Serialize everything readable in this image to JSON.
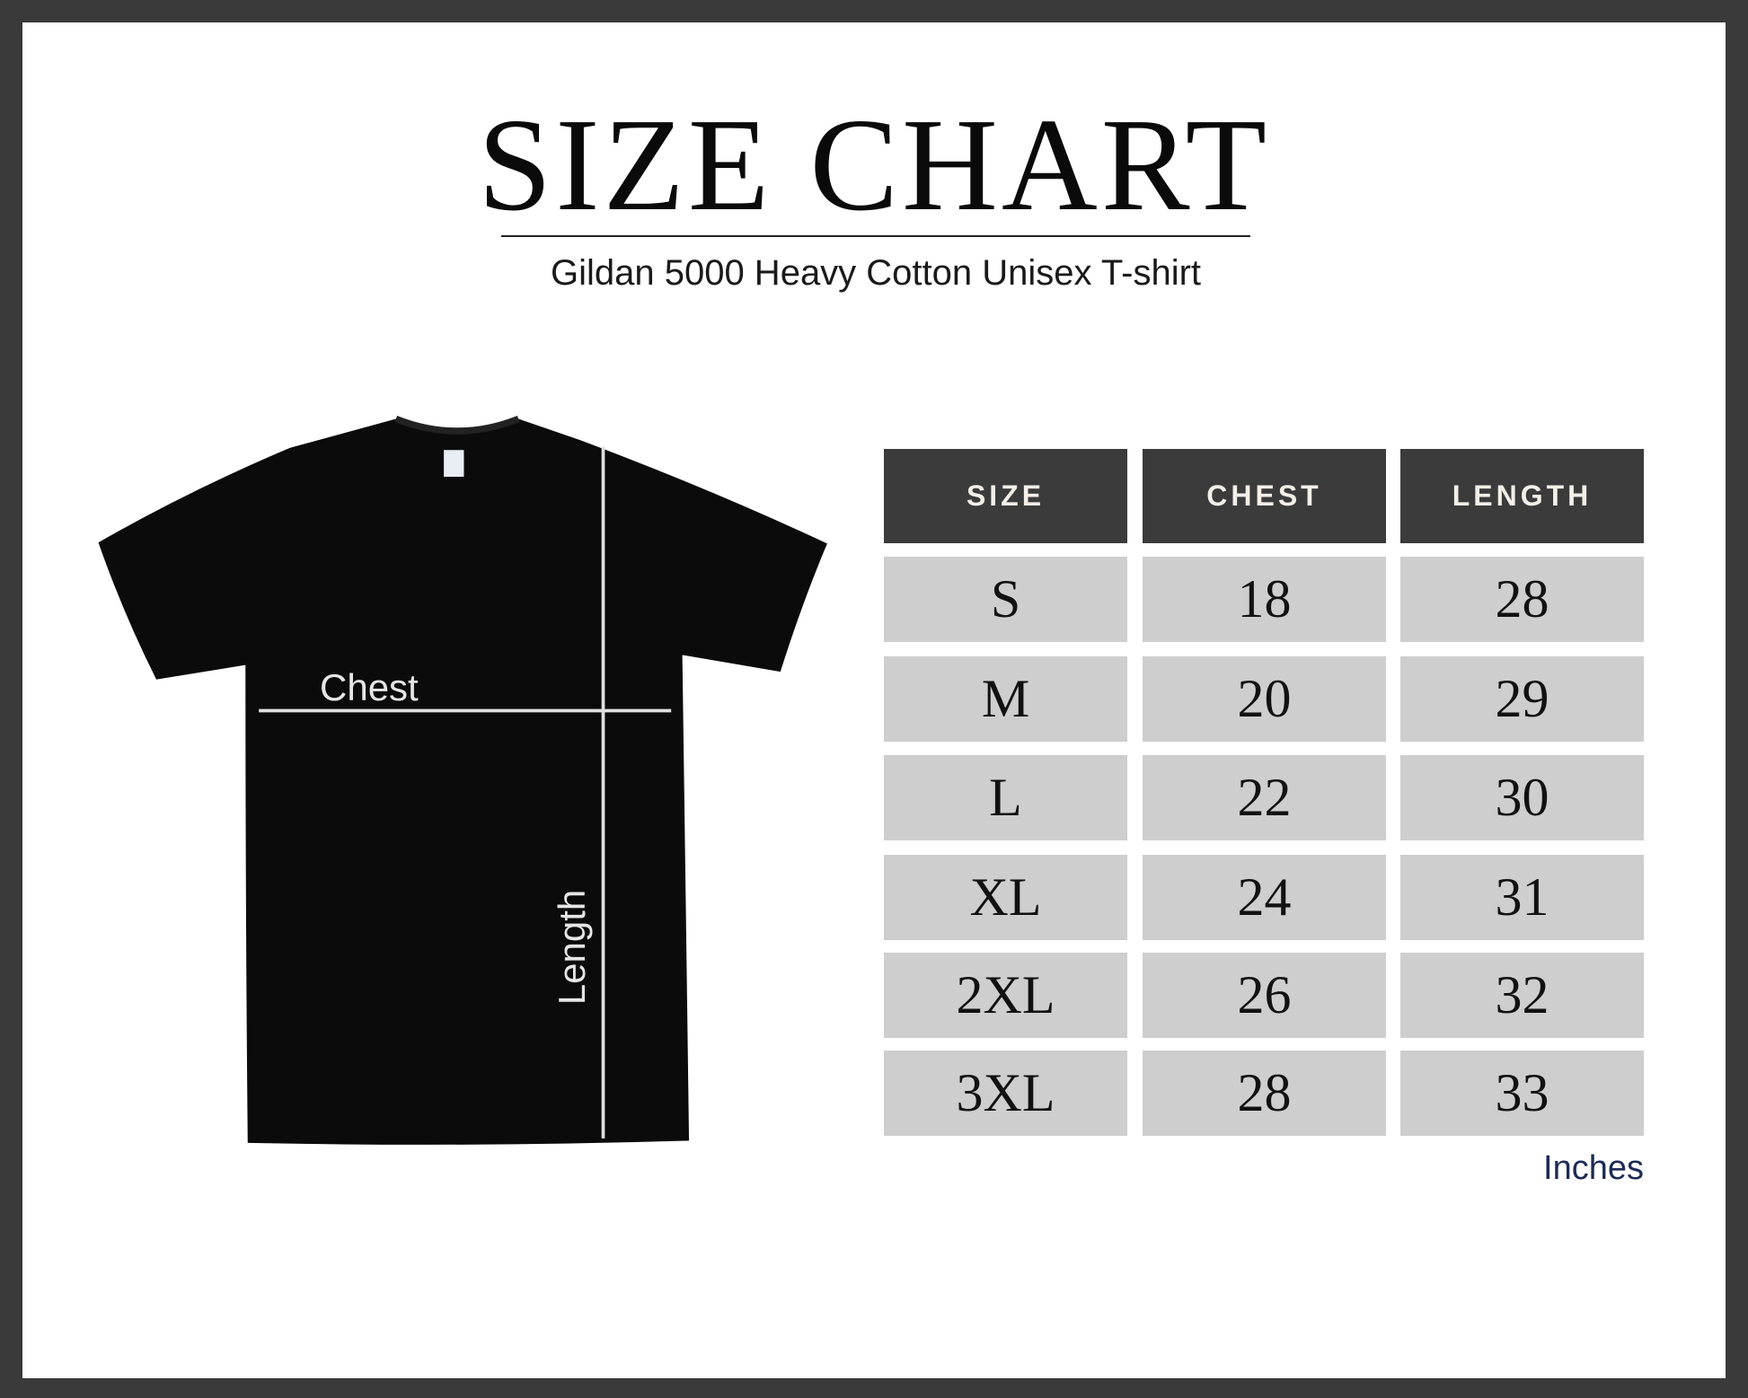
{
  "title": "SIZE CHART",
  "subtitle": "Gildan 5000 Heavy Cotton Unisex T-shirt",
  "diagram": {
    "chest_label": "Chest",
    "length_label": "Length",
    "shirt_color": "#0b0b0b"
  },
  "table": {
    "headers": [
      "SIZE",
      "CHEST",
      "LENGTH"
    ],
    "rows": [
      [
        "S",
        "18",
        "28"
      ],
      [
        "M",
        "20",
        "29"
      ],
      [
        "L",
        "22",
        "30"
      ],
      [
        "XL",
        "24",
        "31"
      ],
      [
        "2XL",
        "26",
        "32"
      ],
      [
        "3XL",
        "28",
        "33"
      ]
    ],
    "units": "Inches",
    "header_color": "#3b3b3b",
    "cell_color": "#cecece"
  }
}
